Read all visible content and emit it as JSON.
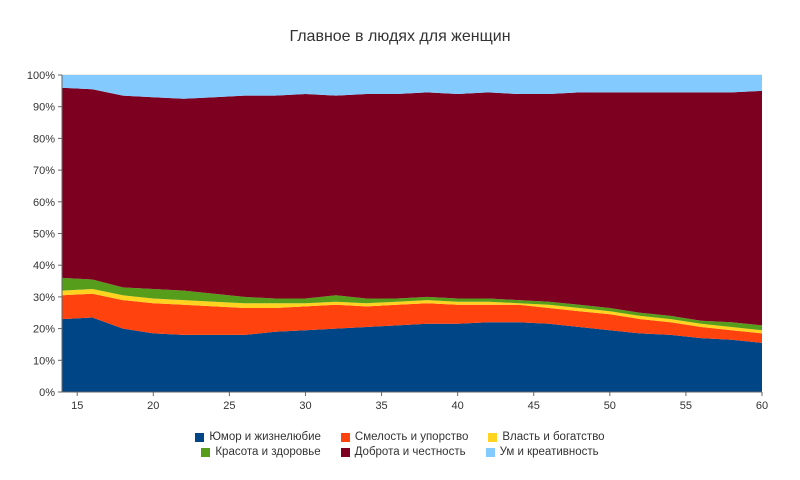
{
  "title": "Главное в людях для женщин",
  "chart_data": {
    "type": "area",
    "stacked": true,
    "percent": true,
    "title": "Главное в людях для женщин",
    "xlabel": "",
    "ylabel": "",
    "grid": true,
    "legend_position": "bottom",
    "xlim": [
      14,
      60
    ],
    "ylim_percent": [
      0,
      100
    ],
    "xticks": [
      15,
      20,
      25,
      30,
      35,
      40,
      45,
      50,
      55,
      60
    ],
    "yticks_percent": [
      0,
      10,
      20,
      30,
      40,
      50,
      60,
      70,
      80,
      90,
      100
    ],
    "x": [
      14,
      16,
      18,
      20,
      22,
      24,
      26,
      28,
      30,
      32,
      34,
      36,
      38,
      40,
      42,
      44,
      46,
      48,
      50,
      52,
      54,
      56,
      58,
      60
    ],
    "series": [
      {
        "name": "Юмор и жизнелюбие",
        "color": "#004586",
        "values": [
          23,
          23.5,
          20,
          18.5,
          18,
          18,
          18,
          19,
          19.5,
          20,
          20.5,
          21,
          21.5,
          21.5,
          22,
          22,
          21.5,
          20.5,
          19.5,
          18.5,
          18,
          17,
          16.5,
          15.5
        ]
      },
      {
        "name": "Смелость и упорство",
        "color": "#FF420E",
        "values": [
          7.5,
          7.5,
          9,
          9.5,
          9.5,
          9,
          8.5,
          7.5,
          7.5,
          7.5,
          6.5,
          6.5,
          6.5,
          6,
          5.5,
          5.5,
          5,
          5,
          5,
          4.5,
          4,
          3.5,
          3,
          3
        ]
      },
      {
        "name": "Власть и богатство",
        "color": "#FFD320",
        "values": [
          1.5,
          1.5,
          1.5,
          1.5,
          1.5,
          1.5,
          1.5,
          1.5,
          1,
          1,
          1,
          1,
          1,
          1,
          1,
          0.5,
          1,
          1,
          1,
          1,
          1,
          1,
          1,
          1
        ]
      },
      {
        "name": "Красота и здоровье",
        "color": "#579D1C",
        "values": [
          4,
          3,
          2.5,
          3,
          3,
          2.5,
          2,
          1.5,
          1.5,
          2,
          1.5,
          1,
          1,
          1,
          1,
          1,
          1,
          1,
          1,
          1,
          1,
          1,
          1.5,
          1.5
        ]
      },
      {
        "name": "Доброта и честность",
        "color": "#7E0021",
        "values": [
          60,
          60,
          60.5,
          60.5,
          60.5,
          62,
          63.5,
          64,
          64.5,
          63,
          64.5,
          64.5,
          64.5,
          64.5,
          65,
          65,
          65.5,
          67,
          68,
          69.5,
          70.5,
          72,
          72.5,
          74
        ]
      },
      {
        "name": "Ум и креативность",
        "color": "#83CAFF",
        "values": [
          4,
          4.5,
          6.5,
          7,
          7.5,
          7,
          6.5,
          6.5,
          6,
          6.5,
          6,
          6,
          5.5,
          6,
          5.5,
          6,
          6,
          5.5,
          5.5,
          5.5,
          5.5,
          5.5,
          5.5,
          5
        ]
      }
    ],
    "colors": {
      "grid": "#d9d9d9",
      "axis": "#666666",
      "text": "#333333"
    }
  }
}
